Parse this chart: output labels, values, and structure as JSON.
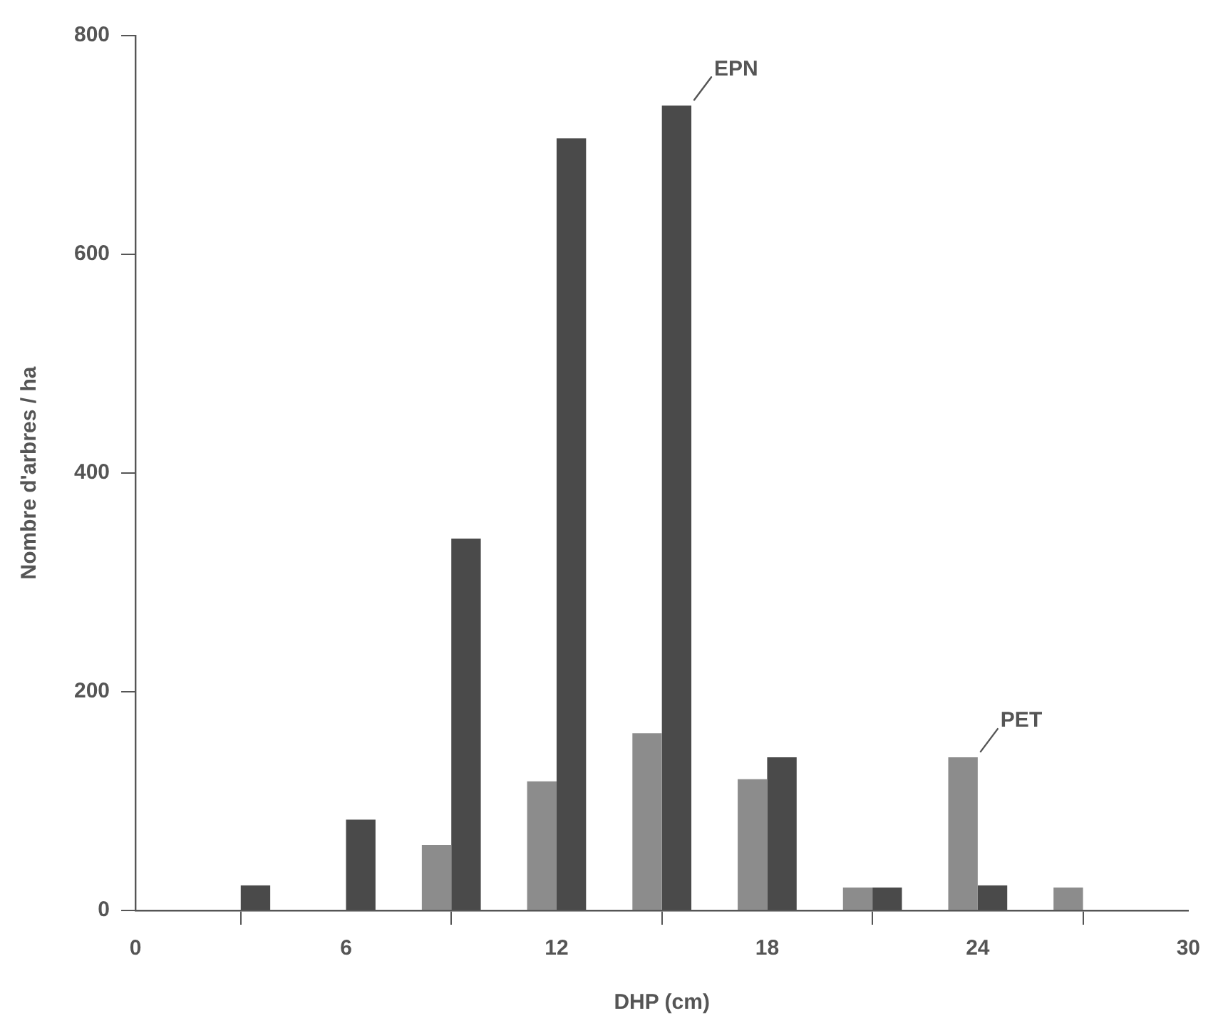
{
  "chart_data": {
    "type": "bar",
    "xlabel": "DHP (cm)",
    "ylabel": "Nombre d'arbres / ha",
    "x": [
      3,
      6,
      9,
      12,
      15,
      18,
      21,
      24,
      27
    ],
    "series": [
      {
        "name": "PET",
        "color": "#8c8c8c",
        "values": [
          0,
          0,
          60,
          118,
          162,
          120,
          21,
          140,
          21
        ]
      },
      {
        "name": "EPN",
        "color": "#4a4a4a",
        "values": [
          23,
          83,
          340,
          706,
          736,
          140,
          21,
          23,
          0
        ]
      }
    ],
    "xlim": [
      0,
      30
    ],
    "xticks": [
      0,
      6,
      12,
      18,
      24,
      30
    ],
    "ylim": [
      0,
      800
    ],
    "yticks": [
      0,
      200,
      400,
      600,
      800
    ],
    "grid": false,
    "legend": false
  }
}
